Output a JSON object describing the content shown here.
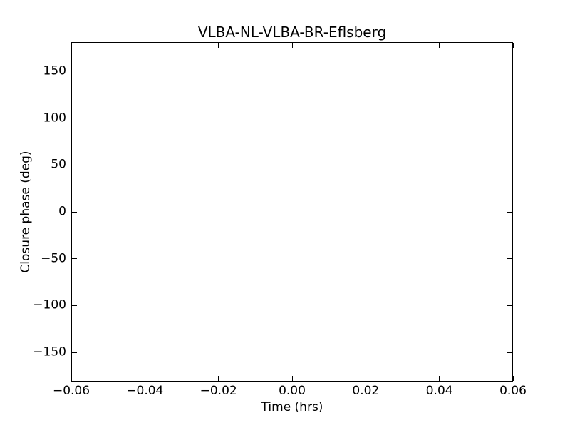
{
  "figure": {
    "background": "#ffffff",
    "text_color": "#000000",
    "spine_color": "#000000"
  },
  "chart_data": {
    "type": "scatter",
    "title": "VLBA-NL-VLBA-BR-Eflsberg",
    "xlabel": "Time (hrs)",
    "ylabel": "Closure phase (deg)",
    "xlim": [
      -0.06,
      0.06
    ],
    "ylim": [
      -181,
      181
    ],
    "xticks": [
      -0.06,
      -0.04,
      -0.02,
      0.0,
      0.02,
      0.04,
      0.06
    ],
    "xtick_labels": [
      "−0.06",
      "−0.04",
      "−0.02",
      "0.00",
      "0.02",
      "0.04",
      "0.06"
    ],
    "yticks": [
      150,
      100,
      50,
      0,
      -50,
      -100,
      -150
    ],
    "ytick_labels": [
      "150",
      "100",
      "50",
      "0",
      "−50",
      "−100",
      "−150"
    ],
    "series": [],
    "grid": false,
    "legend": null
  }
}
